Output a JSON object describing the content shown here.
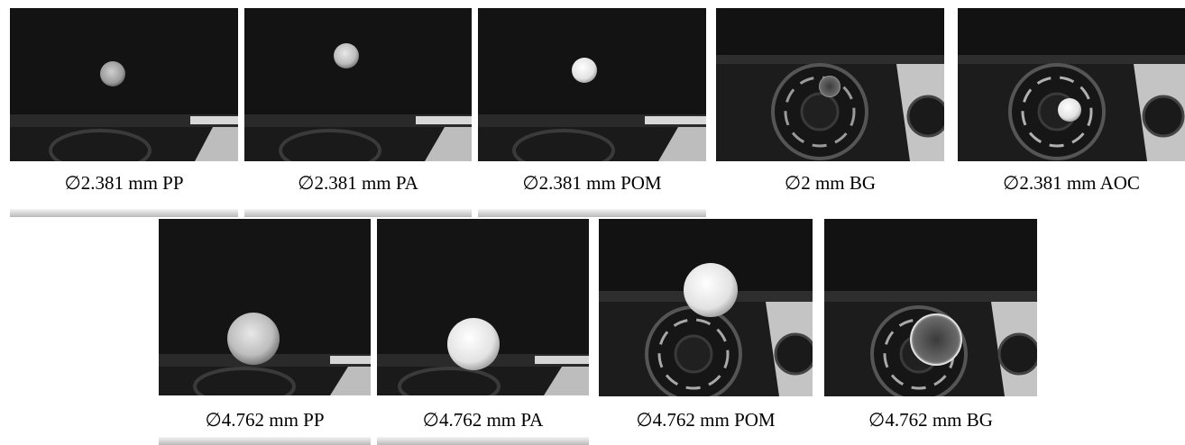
{
  "top_row": [
    {
      "caption": "∅2.381 mm PP"
    },
    {
      "caption": "∅2.381 mm PA"
    },
    {
      "caption": "∅2.381 mm POM"
    },
    {
      "caption": "∅2 mm BG"
    },
    {
      "caption": "∅2.381 mm AOC"
    }
  ],
  "bottom_row": [
    {
      "caption": "∅4.762 mm PP"
    },
    {
      "caption": "∅4.762 mm PA"
    },
    {
      "caption": "∅4.762 mm POM"
    },
    {
      "caption": "∅4.762 mm BG"
    }
  ]
}
